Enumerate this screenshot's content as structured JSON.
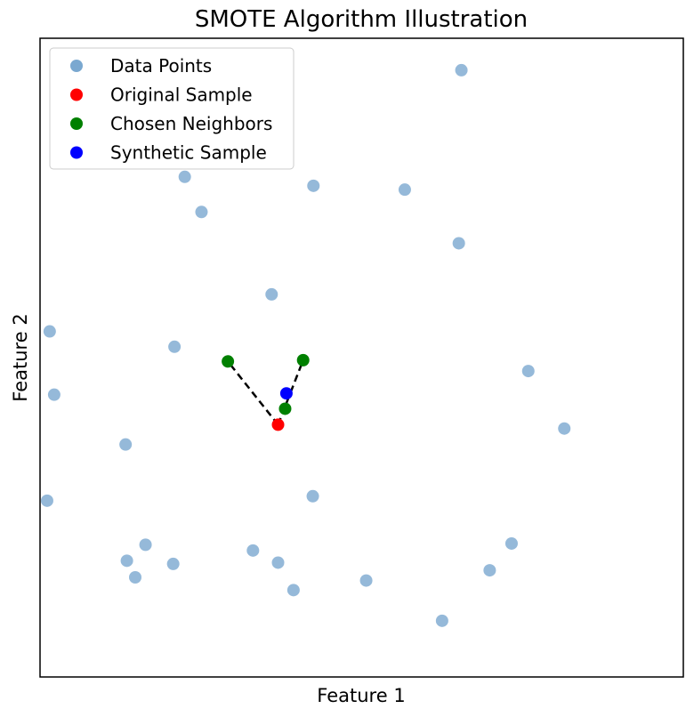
{
  "chart_data": {
    "type": "scatter",
    "title": "SMOTE Algorithm Illustration",
    "xlabel": "Feature 1",
    "ylabel": "Feature 2",
    "xlim": [
      0,
      10
    ],
    "ylim": [
      0,
      10
    ],
    "x_ticks_shown": false,
    "y_ticks_shown": false,
    "grid": false,
    "legend": {
      "position": "top-left",
      "entries": [
        {
          "label": "Data Points",
          "color": "#7aa8d0"
        },
        {
          "label": "Original Sample",
          "color": "#ff0000"
        },
        {
          "label": "Chosen Neighbors",
          "color": "#008000"
        },
        {
          "label": "Synthetic Sample",
          "color": "#0000ff"
        }
      ]
    },
    "series": [
      {
        "name": "Data Points",
        "color": "#7aa8d0",
        "alpha": 0.5,
        "points": [
          [
            6.55,
            9.5
          ],
          [
            2.25,
            7.83
          ],
          [
            4.25,
            7.69
          ],
          [
            5.67,
            7.63
          ],
          [
            2.51,
            7.28
          ],
          [
            6.51,
            6.79
          ],
          [
            3.6,
            5.99
          ],
          [
            0.15,
            5.41
          ],
          [
            2.09,
            5.17
          ],
          [
            7.59,
            4.79
          ],
          [
            0.22,
            4.42
          ],
          [
            8.15,
            3.89
          ],
          [
            1.33,
            3.64
          ],
          [
            4.24,
            2.83
          ],
          [
            0.11,
            2.76
          ],
          [
            7.33,
            2.09
          ],
          [
            1.64,
            2.07
          ],
          [
            1.35,
            1.82
          ],
          [
            2.07,
            1.77
          ],
          [
            3.31,
            1.98
          ],
          [
            3.7,
            1.79
          ],
          [
            6.99,
            1.67
          ],
          [
            1.48,
            1.56
          ],
          [
            5.07,
            1.51
          ],
          [
            3.94,
            1.36
          ],
          [
            6.25,
            0.88
          ]
        ]
      },
      {
        "name": "Original Sample",
        "color": "#ff0000",
        "points": [
          [
            3.7,
            3.95
          ]
        ]
      },
      {
        "name": "Chosen Neighbors",
        "color": "#008000",
        "points": [
          [
            2.92,
            4.94
          ],
          [
            4.09,
            4.96
          ],
          [
            3.81,
            4.2
          ]
        ]
      },
      {
        "name": "Synthetic Sample",
        "color": "#0000ff",
        "points": [
          [
            3.83,
            4.44
          ]
        ]
      }
    ],
    "connections": {
      "style": "dashed",
      "color": "#000000",
      "from": [
        3.7,
        3.95
      ],
      "to": [
        [
          2.92,
          4.94
        ],
        [
          4.09,
          4.96
        ]
      ]
    }
  }
}
